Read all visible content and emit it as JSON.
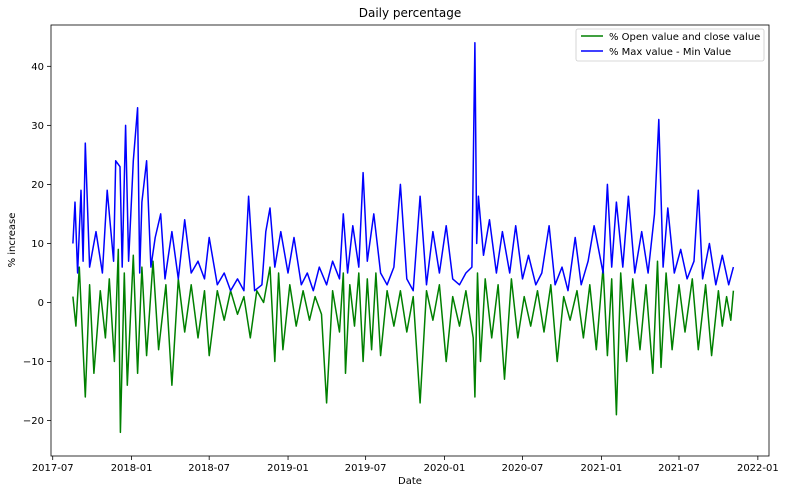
{
  "chart_data": {
    "type": "line",
    "title": "Daily percentage",
    "xlabel": "Date",
    "ylabel": "% increase",
    "xlim": [
      "2017-06-27",
      "2022-01-27"
    ],
    "ylim": [
      -26,
      47
    ],
    "x_ticks": [
      "2017-07",
      "2018-01",
      "2018-07",
      "2019-01",
      "2019-07",
      "2020-01",
      "2020-07",
      "2021-01",
      "2021-07",
      "2022-01"
    ],
    "x_tick_labels": [
      "2017-07",
      "2018-01",
      "2018-07",
      "2019-01",
      "2019-07",
      "2020-01",
      "2020-07",
      "2021-01",
      "2021-07",
      "2022-01"
    ],
    "y_ticks": [
      -20,
      -10,
      0,
      10,
      20,
      30,
      40
    ],
    "y_tick_labels": [
      "−20",
      "−10",
      "0",
      "10",
      "20",
      "30",
      "40"
    ],
    "grid": false,
    "legend_position": "top-right",
    "series": [
      {
        "name": "% Open value and close value",
        "color": "#008000",
        "points": [
          [
            "2017-08-17",
            1
          ],
          [
            "2017-08-24",
            -4
          ],
          [
            "2017-09-01",
            6
          ],
          [
            "2017-09-08",
            -5
          ],
          [
            "2017-09-15",
            -16
          ],
          [
            "2017-09-25",
            3
          ],
          [
            "2017-10-05",
            -12
          ],
          [
            "2017-10-20",
            2
          ],
          [
            "2017-11-01",
            -6
          ],
          [
            "2017-11-10",
            4
          ],
          [
            "2017-11-22",
            -10
          ],
          [
            "2017-12-01",
            9
          ],
          [
            "2017-12-06",
            -22
          ],
          [
            "2017-12-15",
            5
          ],
          [
            "2017-12-22",
            -14
          ],
          [
            "2018-01-05",
            8
          ],
          [
            "2018-01-15",
            -12
          ],
          [
            "2018-01-25",
            6
          ],
          [
            "2018-02-05",
            -9
          ],
          [
            "2018-02-20",
            7
          ],
          [
            "2018-03-05",
            -8
          ],
          [
            "2018-03-22",
            3
          ],
          [
            "2018-04-05",
            -14
          ],
          [
            "2018-04-20",
            4
          ],
          [
            "2018-05-05",
            -5
          ],
          [
            "2018-05-20",
            3
          ],
          [
            "2018-06-05",
            -6
          ],
          [
            "2018-06-20",
            2
          ],
          [
            "2018-07-01",
            -9
          ],
          [
            "2018-07-20",
            2
          ],
          [
            "2018-08-05",
            -3
          ],
          [
            "2018-08-20",
            2
          ],
          [
            "2018-09-05",
            -2
          ],
          [
            "2018-09-20",
            1
          ],
          [
            "2018-10-05",
            -6
          ],
          [
            "2018-10-20",
            2
          ],
          [
            "2018-11-05",
            0
          ],
          [
            "2018-11-20",
            6
          ],
          [
            "2018-12-01",
            -10
          ],
          [
            "2018-12-10",
            5
          ],
          [
            "2018-12-20",
            -8
          ],
          [
            "2019-01-05",
            3
          ],
          [
            "2019-01-20",
            -4
          ],
          [
            "2019-02-05",
            2
          ],
          [
            "2019-02-20",
            -3
          ],
          [
            "2019-03-05",
            1
          ],
          [
            "2019-03-20",
            -2
          ],
          [
            "2019-04-01",
            -17
          ],
          [
            "2019-04-15",
            2
          ],
          [
            "2019-05-01",
            -5
          ],
          [
            "2019-05-10",
            5
          ],
          [
            "2019-05-15",
            -12
          ],
          [
            "2019-05-25",
            3
          ],
          [
            "2019-06-05",
            -4
          ],
          [
            "2019-06-15",
            5
          ],
          [
            "2019-06-25",
            -10
          ],
          [
            "2019-07-05",
            4
          ],
          [
            "2019-07-15",
            -8
          ],
          [
            "2019-07-25",
            5
          ],
          [
            "2019-08-05",
            -9
          ],
          [
            "2019-08-20",
            2
          ],
          [
            "2019-09-05",
            -4
          ],
          [
            "2019-09-20",
            2
          ],
          [
            "2019-10-05",
            -5
          ],
          [
            "2019-10-20",
            1
          ],
          [
            "2019-11-05",
            -17
          ],
          [
            "2019-11-20",
            2
          ],
          [
            "2019-12-05",
            -3
          ],
          [
            "2019-12-20",
            3
          ],
          [
            "2020-01-05",
            -10
          ],
          [
            "2020-01-20",
            1
          ],
          [
            "2020-02-05",
            -4
          ],
          [
            "2020-02-20",
            2
          ],
          [
            "2020-03-08",
            -6
          ],
          [
            "2020-03-12",
            -16
          ],
          [
            "2020-03-18",
            5
          ],
          [
            "2020-03-25",
            -10
          ],
          [
            "2020-04-05",
            4
          ],
          [
            "2020-04-20",
            -6
          ],
          [
            "2020-05-05",
            3
          ],
          [
            "2020-05-20",
            -13
          ],
          [
            "2020-06-05",
            4
          ],
          [
            "2020-06-20",
            -6
          ],
          [
            "2020-07-05",
            1
          ],
          [
            "2020-07-20",
            -4
          ],
          [
            "2020-08-05",
            2
          ],
          [
            "2020-08-20",
            -5
          ],
          [
            "2020-09-05",
            3
          ],
          [
            "2020-09-20",
            -10
          ],
          [
            "2020-10-05",
            1
          ],
          [
            "2020-10-20",
            -3
          ],
          [
            "2020-11-05",
            2
          ],
          [
            "2020-11-20",
            -6
          ],
          [
            "2020-12-05",
            3
          ],
          [
            "2020-12-20",
            -8
          ],
          [
            "2021-01-05",
            6
          ],
          [
            "2021-01-15",
            -9
          ],
          [
            "2021-01-25",
            4
          ],
          [
            "2021-02-05",
            -19
          ],
          [
            "2021-02-15",
            5
          ],
          [
            "2021-03-01",
            -10
          ],
          [
            "2021-03-15",
            4
          ],
          [
            "2021-04-01",
            -8
          ],
          [
            "2021-04-15",
            3
          ],
          [
            "2021-05-01",
            -12
          ],
          [
            "2021-05-12",
            7
          ],
          [
            "2021-05-20",
            -11
          ],
          [
            "2021-06-01",
            5
          ],
          [
            "2021-06-15",
            -8
          ],
          [
            "2021-07-01",
            3
          ],
          [
            "2021-07-15",
            -5
          ],
          [
            "2021-08-01",
            4
          ],
          [
            "2021-08-15",
            -8
          ],
          [
            "2021-09-01",
            3
          ],
          [
            "2021-09-15",
            -9
          ],
          [
            "2021-10-01",
            2
          ],
          [
            "2021-10-10",
            -4
          ],
          [
            "2021-10-20",
            1
          ],
          [
            "2021-10-30",
            -3
          ],
          [
            "2021-11-05",
            2
          ]
        ]
      },
      {
        "name": "% Max value - Min Value",
        "color": "#0000ff",
        "points": [
          [
            "2017-08-17",
            10
          ],
          [
            "2017-08-22",
            17
          ],
          [
            "2017-08-28",
            5
          ],
          [
            "2017-09-05",
            19
          ],
          [
            "2017-09-10",
            7
          ],
          [
            "2017-09-15",
            27
          ],
          [
            "2017-09-25",
            6
          ],
          [
            "2017-10-10",
            12
          ],
          [
            "2017-10-25",
            5
          ],
          [
            "2017-11-05",
            19
          ],
          [
            "2017-11-20",
            7
          ],
          [
            "2017-11-25",
            24
          ],
          [
            "2017-12-05",
            23
          ],
          [
            "2017-12-10",
            6
          ],
          [
            "2017-12-18",
            30
          ],
          [
            "2017-12-25",
            7
          ],
          [
            "2018-01-05",
            24
          ],
          [
            "2018-01-15",
            33
          ],
          [
            "2018-01-20",
            5
          ],
          [
            "2018-01-25",
            17
          ],
          [
            "2018-02-05",
            24
          ],
          [
            "2018-02-15",
            6
          ],
          [
            "2018-02-25",
            11
          ],
          [
            "2018-03-10",
            15
          ],
          [
            "2018-03-20",
            4
          ],
          [
            "2018-04-05",
            12
          ],
          [
            "2018-04-20",
            4
          ],
          [
            "2018-05-05",
            14
          ],
          [
            "2018-05-20",
            5
          ],
          [
            "2018-06-05",
            7
          ],
          [
            "2018-06-20",
            4
          ],
          [
            "2018-07-01",
            11
          ],
          [
            "2018-07-20",
            3
          ],
          [
            "2018-08-05",
            5
          ],
          [
            "2018-08-20",
            2
          ],
          [
            "2018-09-05",
            4
          ],
          [
            "2018-09-20",
            2
          ],
          [
            "2018-10-01",
            18
          ],
          [
            "2018-10-15",
            2
          ],
          [
            "2018-11-01",
            3
          ],
          [
            "2018-11-10",
            12
          ],
          [
            "2018-11-20",
            16
          ],
          [
            "2018-12-01",
            6
          ],
          [
            "2018-12-15",
            12
          ],
          [
            "2019-01-01",
            5
          ],
          [
            "2019-01-15",
            11
          ],
          [
            "2019-02-01",
            3
          ],
          [
            "2019-02-15",
            5
          ],
          [
            "2019-03-01",
            2
          ],
          [
            "2019-03-15",
            6
          ],
          [
            "2019-04-01",
            3
          ],
          [
            "2019-04-15",
            7
          ],
          [
            "2019-05-01",
            4
          ],
          [
            "2019-05-10",
            15
          ],
          [
            "2019-05-20",
            5
          ],
          [
            "2019-06-01",
            13
          ],
          [
            "2019-06-15",
            6
          ],
          [
            "2019-06-25",
            22
          ],
          [
            "2019-07-05",
            7
          ],
          [
            "2019-07-20",
            15
          ],
          [
            "2019-08-05",
            5
          ],
          [
            "2019-08-20",
            3
          ],
          [
            "2019-09-05",
            6
          ],
          [
            "2019-09-20",
            20
          ],
          [
            "2019-10-05",
            4
          ],
          [
            "2019-10-20",
            2
          ],
          [
            "2019-11-05",
            18
          ],
          [
            "2019-11-20",
            3
          ],
          [
            "2019-12-05",
            12
          ],
          [
            "2019-12-20",
            5
          ],
          [
            "2020-01-05",
            13
          ],
          [
            "2020-01-20",
            4
          ],
          [
            "2020-02-05",
            3
          ],
          [
            "2020-02-20",
            5
          ],
          [
            "2020-03-05",
            6
          ],
          [
            "2020-03-12",
            44
          ],
          [
            "2020-03-16",
            10
          ],
          [
            "2020-03-20",
            18
          ],
          [
            "2020-04-01",
            8
          ],
          [
            "2020-04-15",
            14
          ],
          [
            "2020-05-01",
            5
          ],
          [
            "2020-05-15",
            12
          ],
          [
            "2020-06-01",
            5
          ],
          [
            "2020-06-15",
            13
          ],
          [
            "2020-07-01",
            4
          ],
          [
            "2020-07-15",
            8
          ],
          [
            "2020-08-01",
            3
          ],
          [
            "2020-08-15",
            5
          ],
          [
            "2020-09-01",
            13
          ],
          [
            "2020-09-15",
            3
          ],
          [
            "2020-10-01",
            6
          ],
          [
            "2020-10-15",
            2
          ],
          [
            "2020-11-01",
            11
          ],
          [
            "2020-11-15",
            3
          ],
          [
            "2020-12-01",
            7
          ],
          [
            "2020-12-15",
            13
          ],
          [
            "2021-01-05",
            5
          ],
          [
            "2021-01-15",
            20
          ],
          [
            "2021-01-25",
            6
          ],
          [
            "2021-02-05",
            17
          ],
          [
            "2021-02-20",
            6
          ],
          [
            "2021-03-05",
            18
          ],
          [
            "2021-03-20",
            5
          ],
          [
            "2021-04-05",
            12
          ],
          [
            "2021-04-20",
            5
          ],
          [
            "2021-05-05",
            15
          ],
          [
            "2021-05-15",
            31
          ],
          [
            "2021-05-25",
            6
          ],
          [
            "2021-06-05",
            16
          ],
          [
            "2021-06-20",
            5
          ],
          [
            "2021-07-05",
            9
          ],
          [
            "2021-07-20",
            4
          ],
          [
            "2021-08-05",
            7
          ],
          [
            "2021-08-15",
            19
          ],
          [
            "2021-08-25",
            4
          ],
          [
            "2021-09-10",
            10
          ],
          [
            "2021-09-25",
            3
          ],
          [
            "2021-10-10",
            8
          ],
          [
            "2021-10-25",
            3
          ],
          [
            "2021-11-05",
            6
          ]
        ]
      }
    ]
  }
}
